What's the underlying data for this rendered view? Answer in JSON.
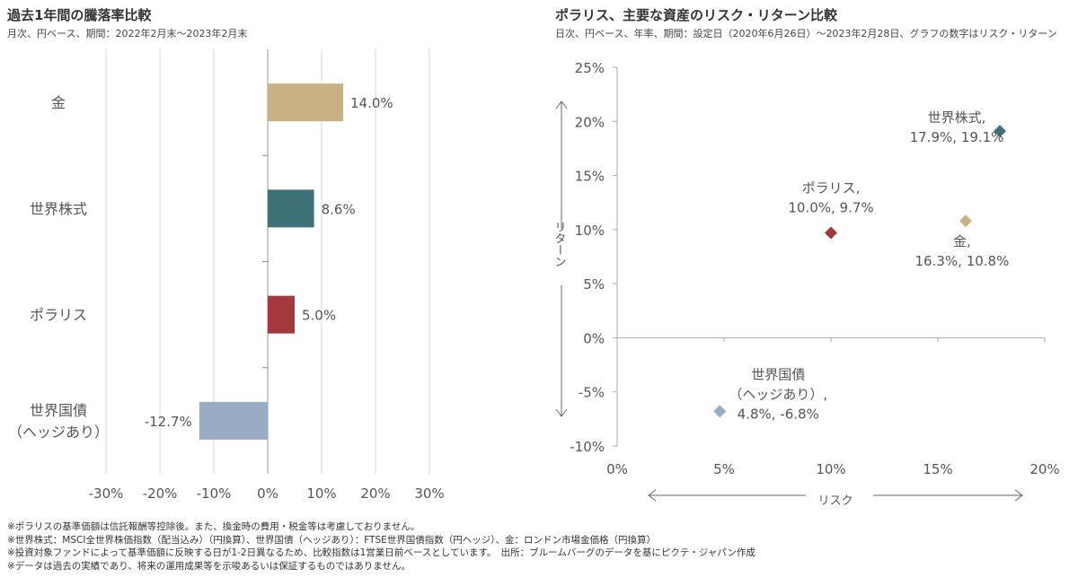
{
  "chart_data": [
    {
      "type": "bar",
      "orientation": "horizontal",
      "title": "過去1年間の騰落率比較",
      "subtitle": "月次、円ベース、期間：2022年2月末～2023年2月末",
      "categories": [
        "金",
        "世界株式",
        "ポラリス",
        "世界国債\n（ヘッジあり）"
      ],
      "values": [
        14.0,
        8.6,
        5.0,
        -12.7
      ],
      "data_labels": [
        "14.0%",
        "8.6%",
        "5.0%",
        "-12.7%"
      ],
      "colors": [
        "#c9b183",
        "#3f7178",
        "#a3393f",
        "#9aabc4"
      ],
      "xlim": [
        -30,
        30
      ],
      "x_ticks": [
        "-30%",
        "-20%",
        "-10%",
        "0%",
        "10%",
        "20%",
        "30%"
      ],
      "grid": true
    },
    {
      "type": "scatter",
      "title": "ポラリス、主要な資産のリスク・リターン比較",
      "subtitle": "日次、円ベース、年率、期間：設定日（2020年6月26日）～2023年2月28日、グラフの数字はリスク・リターン",
      "xlabel": "リスク",
      "ylabel": "リターン",
      "xlim": [
        0,
        20
      ],
      "ylim": [
        -10,
        25
      ],
      "x_ticks": [
        "0%",
        "5%",
        "10%",
        "15%",
        "20%"
      ],
      "y_ticks": [
        "-10%",
        "-5%",
        "0%",
        "5%",
        "10%",
        "15%",
        "20%",
        "25%"
      ],
      "grid": false,
      "points": [
        {
          "name": "世界株式,",
          "label": "17.9%, 19.1%",
          "x": 17.9,
          "y": 19.1,
          "color": "#3f7178"
        },
        {
          "name": "ポラリス,",
          "label": "10.0%, 9.7%",
          "x": 10.0,
          "y": 9.7,
          "color": "#a3393f"
        },
        {
          "name": "金,",
          "label": "16.3%, 10.8%",
          "x": 16.3,
          "y": 10.8,
          "color": "#c9b183"
        },
        {
          "name": "世界国債\n（ヘッジあり）,",
          "label": "4.8%, -6.8%",
          "x": 4.8,
          "y": -6.8,
          "color": "#9aabc4"
        }
      ]
    }
  ],
  "notes": [
    "※ポラリスの基準価額は信託報酬等控除後。また、換金時の費用・税金等は考慮しておりません。",
    "※世界株式：MSCI全世界株価指数（配当込み）（円換算）、世界国債（ヘッジあり）：FTSE世界国債指数（円ヘッジ）、金：ロンドン市場金価格（円換算）",
    "※投資対象ファンドによって基準価額に反映する日が1-2日異なるため、比較指数は1営業日前ベースとしています。　出所：ブルームバーグのデータを基にピクテ・ジャパン作成",
    "※データは過去の実績であり、将来の運用成果等を示唆あるいは保証するものではありません。"
  ]
}
